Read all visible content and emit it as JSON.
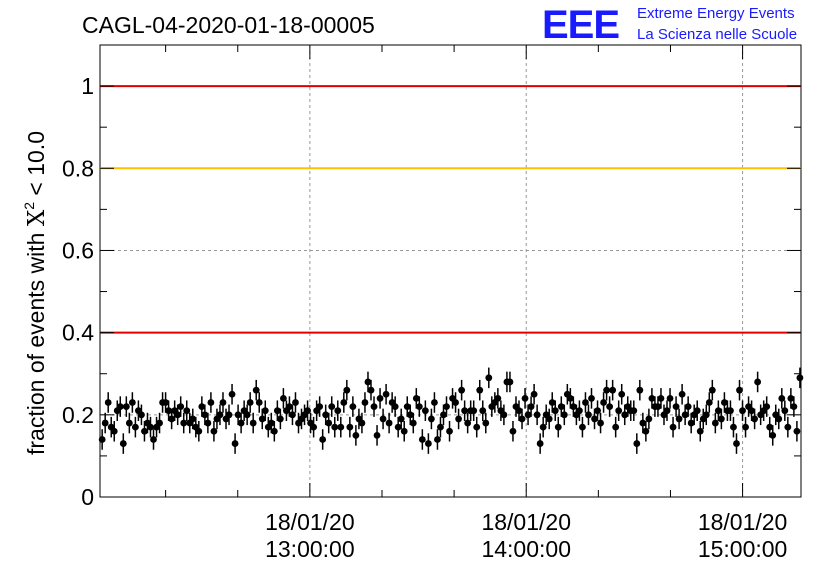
{
  "header": {
    "run_id": "CAGL-04-2020-01-18-00005"
  },
  "logo": {
    "letters": "EEE",
    "line1": "Extreme Energy Events",
    "line2": "La Scienza nelle Scuole",
    "color": "#1a1aff"
  },
  "chart_data": {
    "type": "scatter",
    "title": "CAGL-04-2020-01-18-00005",
    "ylabel_prefix": "fraction of events with ",
    "ylabel_symbol": "X",
    "ylabel_sup": "2",
    "ylabel_suffix": " < 10.0",
    "xlabel": "",
    "ylim": [
      0,
      1.1
    ],
    "xlim_hours": [
      12.03,
      15.27
    ],
    "grid": true,
    "y_ticks": [
      {
        "value": 0,
        "label": "0"
      },
      {
        "value": 0.2,
        "label": "0.2"
      },
      {
        "value": 0.4,
        "label": "0.4"
      },
      {
        "value": 0.6,
        "label": "0.6"
      },
      {
        "value": 0.8,
        "label": "0.8"
      },
      {
        "value": 1,
        "label": "1"
      }
    ],
    "x_ticks": [
      {
        "hour": 13,
        "date": "18/01/20",
        "time": "13:00:00"
      },
      {
        "hour": 14,
        "date": "18/01/20",
        "time": "14:00:00"
      },
      {
        "hour": 15,
        "date": "18/01/20",
        "time": "15:00:00"
      }
    ],
    "reference_lines": [
      {
        "value": 1.0,
        "color": "#e00000"
      },
      {
        "value": 0.8,
        "color": "#ffc000"
      },
      {
        "value": 0.4,
        "color": "#e00000"
      }
    ],
    "error_bar": 0.025,
    "series": [
      {
        "x_start_hour": 12.04,
        "x_end_hour": 15.265,
        "values": [
          0.14,
          0.18,
          0.23,
          0.17,
          0.16,
          0.21,
          0.22,
          0.13,
          0.22,
          0.18,
          0.23,
          0.17,
          0.21,
          0.2,
          0.16,
          0.18,
          0.17,
          0.14,
          0.17,
          0.18,
          0.23,
          0.23,
          0.21,
          0.19,
          0.21,
          0.2,
          0.22,
          0.18,
          0.21,
          0.18,
          0.19,
          0.17,
          0.16,
          0.22,
          0.2,
          0.18,
          0.23,
          0.16,
          0.19,
          0.2,
          0.23,
          0.19,
          0.2,
          0.25,
          0.13,
          0.2,
          0.18,
          0.21,
          0.2,
          0.23,
          0.18,
          0.26,
          0.23,
          0.19,
          0.21,
          0.17,
          0.18,
          0.16,
          0.21,
          0.19,
          0.24,
          0.21,
          0.22,
          0.2,
          0.23,
          0.18,
          0.19,
          0.2,
          0.21,
          0.18,
          0.17,
          0.21,
          0.22,
          0.14,
          0.2,
          0.18,
          0.22,
          0.17,
          0.21,
          0.17,
          0.23,
          0.26,
          0.17,
          0.22,
          0.15,
          0.19,
          0.18,
          0.23,
          0.28,
          0.26,
          0.22,
          0.15,
          0.24,
          0.19,
          0.25,
          0.18,
          0.23,
          0.22,
          0.17,
          0.19,
          0.16,
          0.22,
          0.2,
          0.18,
          0.24,
          0.22,
          0.14,
          0.21,
          0.13,
          0.19,
          0.23,
          0.14,
          0.17,
          0.2,
          0.22,
          0.16,
          0.24,
          0.23,
          0.19,
          0.26,
          0.21,
          0.18,
          0.21,
          0.21,
          0.17,
          0.26,
          0.21,
          0.18,
          0.29,
          0.22,
          0.23,
          0.24,
          0.21,
          0.2,
          0.28,
          0.28,
          0.16,
          0.22,
          0.21,
          0.19,
          0.24,
          0.2,
          0.22,
          0.25,
          0.2,
          0.13,
          0.17,
          0.2,
          0.19,
          0.23,
          0.21,
          0.17,
          0.22,
          0.2,
          0.25,
          0.24,
          0.22,
          0.2,
          0.21,
          0.17,
          0.23,
          0.2,
          0.24,
          0.19,
          0.21,
          0.18,
          0.23,
          0.26,
          0.22,
          0.26,
          0.17,
          0.21,
          0.25,
          0.2,
          0.22,
          0.21,
          0.21,
          0.13,
          0.26,
          0.18,
          0.16,
          0.19,
          0.24,
          0.22,
          0.22,
          0.24,
          0.2,
          0.21,
          0.24,
          0.17,
          0.22,
          0.19,
          0.25,
          0.2,
          0.22,
          0.18,
          0.2,
          0.21,
          0.16,
          0.19,
          0.2,
          0.23,
          0.26,
          0.18,
          0.21,
          0.19,
          0.23,
          0.21,
          0.21,
          0.17,
          0.13,
          0.26,
          0.21,
          0.17,
          0.22,
          0.21,
          0.19,
          0.28,
          0.2,
          0.21,
          0.22,
          0.17,
          0.15,
          0.2,
          0.19,
          0.24,
          0.21,
          0.17,
          0.24,
          0.22,
          0.16,
          0.29
        ]
      }
    ]
  }
}
